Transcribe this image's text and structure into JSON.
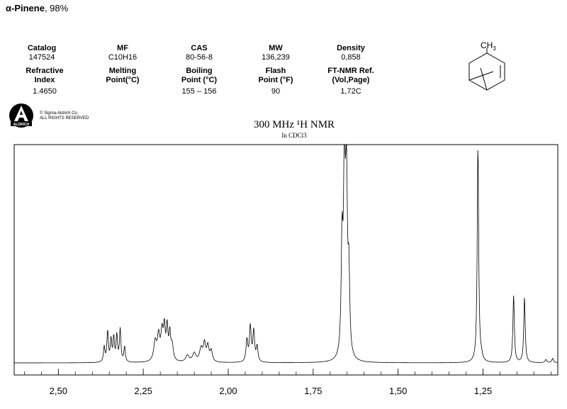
{
  "header": {
    "compound": "α-Pinene",
    "purity": ", 98%"
  },
  "properties": [
    {
      "label": "Catalog",
      "value": "147524"
    },
    {
      "label": "MF",
      "value": "C10H16"
    },
    {
      "label": "CAS",
      "value": "80-56-8"
    },
    {
      "label": "MW",
      "value": "136,239"
    },
    {
      "label": "Density",
      "value": "0,858"
    },
    {
      "label": "Refractive\nIndex",
      "value": "1.4650"
    },
    {
      "label": "Melting\nPoint(°C)",
      "value": ""
    },
    {
      "label": "Boiling\nPoint (°C)",
      "value": "155 – 156"
    },
    {
      "label": "Flash\nPoint (°F)",
      "value": "90"
    },
    {
      "label": "FT-NMR Ref.\n(Vol,Page)",
      "value": "1,72C"
    }
  ],
  "structure": {
    "methyl_label": "CH",
    "methyl_subscript": "3"
  },
  "logo": {
    "text": "ALDRICH"
  },
  "copyright": {
    "line1": "© Sigma-Aldrich Co.",
    "line2": "ALL RIGHTS RESERVED"
  },
  "chart_data": {
    "type": "line",
    "title": "300 MHz ¹H NMR",
    "subtitle": "In CDCl3",
    "xlabel": "",
    "ylabel": "",
    "x_reversed": true,
    "xlim": [
      2.63,
      1.03
    ],
    "ylim": [
      0,
      1
    ],
    "x_ticks": [
      2.5,
      2.25,
      2.0,
      1.75,
      1.5,
      1.25
    ],
    "x_tick_labels": [
      "2,50",
      "2,25",
      "2,00",
      "1,75",
      "1,50",
      "1,25"
    ],
    "peaks": [
      {
        "ppm": 2.365,
        "height": 0.07,
        "width": 0.0025
      },
      {
        "ppm": 2.355,
        "height": 0.14,
        "width": 0.0025
      },
      {
        "ppm": 2.345,
        "height": 0.1,
        "width": 0.0025
      },
      {
        "ppm": 2.337,
        "height": 0.11,
        "width": 0.0025
      },
      {
        "ppm": 2.328,
        "height": 0.12,
        "width": 0.0025
      },
      {
        "ppm": 2.318,
        "height": 0.15,
        "width": 0.0025
      },
      {
        "ppm": 2.305,
        "height": 0.07,
        "width": 0.0025
      },
      {
        "ppm": 2.215,
        "height": 0.09,
        "width": 0.005
      },
      {
        "ppm": 2.205,
        "height": 0.11,
        "width": 0.004
      },
      {
        "ppm": 2.195,
        "height": 0.13,
        "width": 0.004
      },
      {
        "ppm": 2.188,
        "height": 0.14,
        "width": 0.003
      },
      {
        "ppm": 2.18,
        "height": 0.15,
        "width": 0.003
      },
      {
        "ppm": 2.172,
        "height": 0.12,
        "width": 0.003
      },
      {
        "ppm": 2.165,
        "height": 0.07,
        "width": 0.004
      },
      {
        "ppm": 2.12,
        "height": 0.03,
        "width": 0.006
      },
      {
        "ppm": 2.1,
        "height": 0.04,
        "width": 0.006
      },
      {
        "ppm": 2.08,
        "height": 0.06,
        "width": 0.005
      },
      {
        "ppm": 2.07,
        "height": 0.08,
        "width": 0.004
      },
      {
        "ppm": 2.06,
        "height": 0.07,
        "width": 0.004
      },
      {
        "ppm": 2.05,
        "height": 0.05,
        "width": 0.004
      },
      {
        "ppm": 1.945,
        "height": 0.1,
        "width": 0.003
      },
      {
        "ppm": 1.935,
        "height": 0.16,
        "width": 0.003
      },
      {
        "ppm": 1.925,
        "height": 0.14,
        "width": 0.003
      },
      {
        "ppm": 1.915,
        "height": 0.07,
        "width": 0.003
      },
      {
        "ppm": 1.665,
        "height": 0.5,
        "width": 0.003
      },
      {
        "ppm": 1.658,
        "height": 0.9,
        "width": 0.003
      },
      {
        "ppm": 1.652,
        "height": 0.82,
        "width": 0.003
      },
      {
        "ppm": 1.645,
        "height": 0.36,
        "width": 0.003
      },
      {
        "ppm": 1.265,
        "height": 1.0,
        "width": 0.0025
      },
      {
        "ppm": 1.255,
        "height": 0.02,
        "width": 0.004
      },
      {
        "ppm": 1.16,
        "height": 0.31,
        "width": 0.0025
      },
      {
        "ppm": 1.128,
        "height": 0.3,
        "width": 0.0025
      },
      {
        "ppm": 1.065,
        "height": 0.015,
        "width": 0.003
      },
      {
        "ppm": 1.045,
        "height": 0.02,
        "width": 0.003
      }
    ]
  }
}
